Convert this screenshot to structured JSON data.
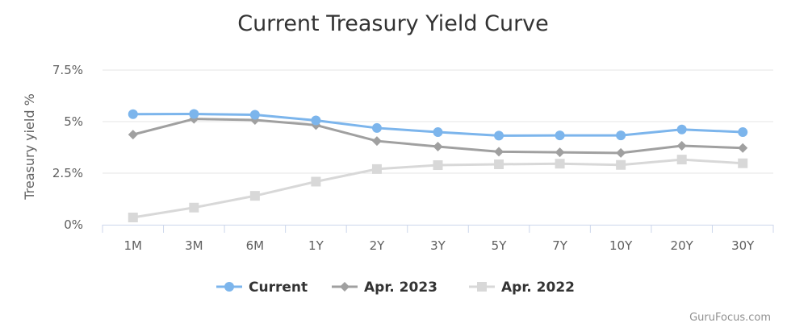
{
  "chart_data": {
    "type": "line",
    "title": "Current Treasury Yield Curve",
    "ylabel": "Treasury yield %",
    "xlabel": "",
    "categories": [
      "1M",
      "3M",
      "6M",
      "1Y",
      "2Y",
      "3Y",
      "5Y",
      "7Y",
      "10Y",
      "20Y",
      "30Y"
    ],
    "ylim": [
      0,
      7.5
    ],
    "yticks": [
      0,
      2.5,
      5,
      7.5
    ],
    "ytick_labels": [
      "0%",
      "2.5%",
      "5%",
      "7.5%"
    ],
    "grid": true,
    "legend_position": "bottom-center",
    "series": [
      {
        "name": "Current",
        "marker": "circle",
        "color": "#7cb5ec",
        "values": [
          5.36,
          5.37,
          5.33,
          5.06,
          4.69,
          4.49,
          4.32,
          4.33,
          4.33,
          4.62,
          4.49
        ]
      },
      {
        "name": "Apr. 2023",
        "marker": "diamond",
        "color": "#a0a0a0",
        "values": [
          4.37,
          5.13,
          5.08,
          4.83,
          4.06,
          3.79,
          3.54,
          3.51,
          3.48,
          3.83,
          3.72
        ]
      },
      {
        "name": "Apr. 2022",
        "marker": "square",
        "color": "#d8d8d8",
        "values": [
          0.35,
          0.83,
          1.4,
          2.09,
          2.7,
          2.89,
          2.93,
          2.96,
          2.9,
          3.16,
          2.98
        ]
      }
    ]
  },
  "credit": "GuruFocus.com"
}
